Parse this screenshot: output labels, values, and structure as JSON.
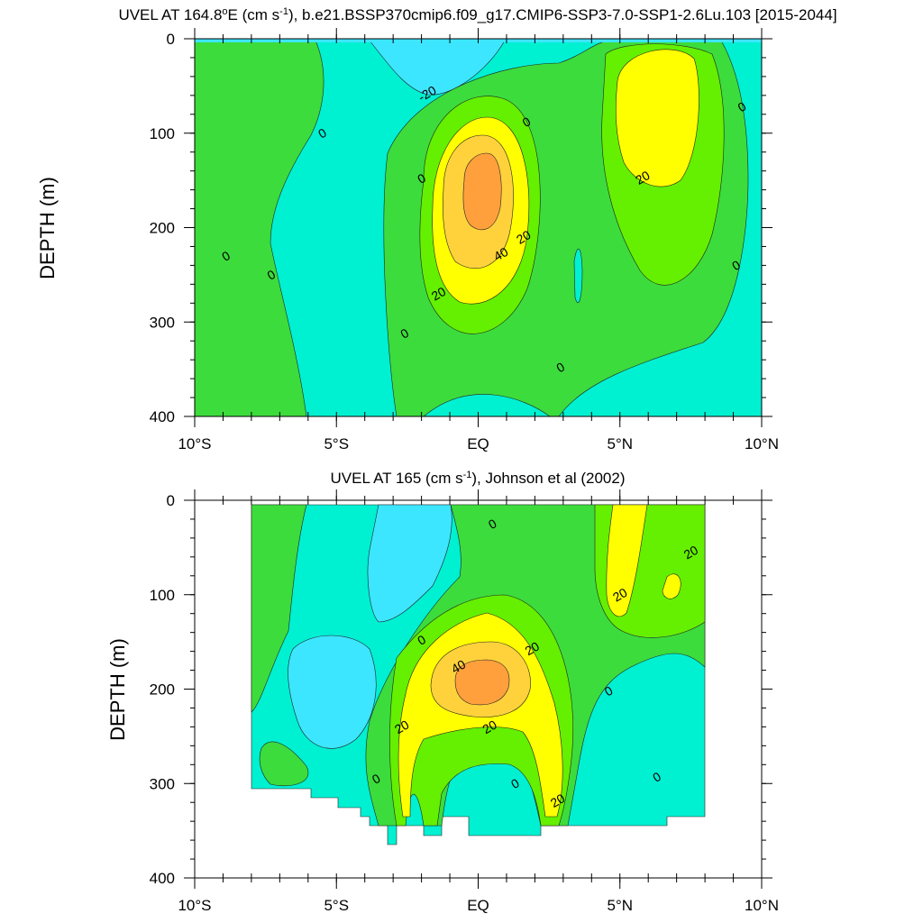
{
  "colors": {
    "level_lt_m20": "#3ce6ff",
    "level_m20_0": "#00f0d2",
    "level_0_10": "#3cdc3c",
    "level_10_20": "#64f000",
    "level_20_30": "#ffff00",
    "level_30_40": "#ffd23c",
    "level_gt_40": "#ffa03c"
  },
  "chart_data": [
    {
      "type": "heatmap",
      "title": "UVEL AT 164.8°E (cm s-1), b.e21.BSSP370cmip6.f09_g17.CMIP6-SSP3-7.0-SSP1-2.6Lu.103 [2015-2044]",
      "title_parts": {
        "pre": "UVEL AT 164.8",
        "sup1": "o",
        "mid": "E (cm s",
        "sup2": "-1",
        "post": "), b.e21.BSSP370cmip6.f09_g17.CMIP6-SSP3-7.0-SSP1-2.6Lu.103 [2015-2044]"
      },
      "ylabel": "DEPTH (m)",
      "xlabel": "",
      "xlim": [
        -10,
        10
      ],
      "ylim": [
        400,
        0
      ],
      "x_ticks": [
        {
          "value": -10,
          "label": "10°S"
        },
        {
          "value": -5,
          "label": "5°S"
        },
        {
          "value": 0,
          "label": "EQ"
        },
        {
          "value": 5,
          "label": "5°N"
        },
        {
          "value": 10,
          "label": "10°N"
        }
      ],
      "y_ticks": [
        {
          "value": 0,
          "label": "0"
        },
        {
          "value": 100,
          "label": "100"
        },
        {
          "value": 200,
          "label": "200"
        },
        {
          "value": 300,
          "label": "300"
        },
        {
          "value": 400,
          "label": "400"
        }
      ],
      "contour_levels": [
        -20,
        0,
        10,
        20,
        30,
        40
      ],
      "features": [
        {
          "kind": "core",
          "x": 0.0,
          "depth": 180,
          "max_value": 45
        },
        {
          "kind": "core",
          "x": 6.0,
          "depth": 80,
          "max_value": 25
        },
        {
          "kind": "minimum",
          "x": -1.5,
          "depth": 40,
          "min_value": -25
        }
      ],
      "contour_labels": [
        {
          "text": "-20",
          "x": -1.8,
          "depth": 58
        },
        {
          "text": "0",
          "x": -5.5,
          "depth": 100
        },
        {
          "text": "0",
          "x": 1.7,
          "depth": 88
        },
        {
          "text": "0",
          "x": 9.3,
          "depth": 72
        },
        {
          "text": "0",
          "x": -2.0,
          "depth": 148
        },
        {
          "text": "20",
          "x": 5.8,
          "depth": 147
        },
        {
          "text": "20",
          "x": 1.6,
          "depth": 210
        },
        {
          "text": "40",
          "x": 0.8,
          "depth": 228
        },
        {
          "text": "0",
          "x": -8.9,
          "depth": 230
        },
        {
          "text": "0",
          "x": -7.3,
          "depth": 250
        },
        {
          "text": "20",
          "x": -1.4,
          "depth": 270
        },
        {
          "text": "0",
          "x": 9.1,
          "depth": 240
        },
        {
          "text": "0",
          "x": -2.6,
          "depth": 312
        },
        {
          "text": "0",
          "x": 2.9,
          "depth": 348
        }
      ]
    },
    {
      "type": "heatmap",
      "title": "UVEL AT 165 (cm s-1), Johnson et al (2002)",
      "title_parts": {
        "pre": "UVEL AT 165 (cm s",
        "sup1": "-1",
        "post": "), Johnson et al (2002)"
      },
      "ylabel": "DEPTH (m)",
      "xlabel": "",
      "xlim": [
        -10,
        10
      ],
      "ylim": [
        400,
        0
      ],
      "data_xrange": [
        -8,
        8
      ],
      "x_ticks": [
        {
          "value": -10,
          "label": "10°S"
        },
        {
          "value": -5,
          "label": "5°S"
        },
        {
          "value": 0,
          "label": "EQ"
        },
        {
          "value": 5,
          "label": "5°N"
        },
        {
          "value": 10,
          "label": "10°N"
        }
      ],
      "y_ticks": [
        {
          "value": 0,
          "label": "0"
        },
        {
          "value": 100,
          "label": "100"
        },
        {
          "value": 200,
          "label": "200"
        },
        {
          "value": 300,
          "label": "300"
        },
        {
          "value": 400,
          "label": "400"
        }
      ],
      "contour_levels": [
        0,
        10,
        20,
        30,
        40
      ],
      "features": [
        {
          "kind": "core",
          "x": 0.0,
          "depth": 190,
          "max_value": 45
        },
        {
          "kind": "core",
          "x": 5.5,
          "depth": 60,
          "max_value": 25
        }
      ],
      "contour_labels": [
        {
          "text": "0",
          "x": 0.5,
          "depth": 25
        },
        {
          "text": "20",
          "x": 7.5,
          "depth": 55
        },
        {
          "text": "20",
          "x": 5.0,
          "depth": 100
        },
        {
          "text": "0",
          "x": -2.0,
          "depth": 148
        },
        {
          "text": "20",
          "x": 1.9,
          "depth": 157
        },
        {
          "text": "40",
          "x": -0.7,
          "depth": 176
        },
        {
          "text": "0",
          "x": 4.6,
          "depth": 202
        },
        {
          "text": "20",
          "x": -2.7,
          "depth": 240
        },
        {
          "text": "20",
          "x": 0.4,
          "depth": 240
        },
        {
          "text": "0",
          "x": -3.6,
          "depth": 295
        },
        {
          "text": "0",
          "x": 1.3,
          "depth": 300
        },
        {
          "text": "0",
          "x": 6.3,
          "depth": 293
        },
        {
          "text": "20",
          "x": 2.8,
          "depth": 318
        }
      ]
    }
  ]
}
